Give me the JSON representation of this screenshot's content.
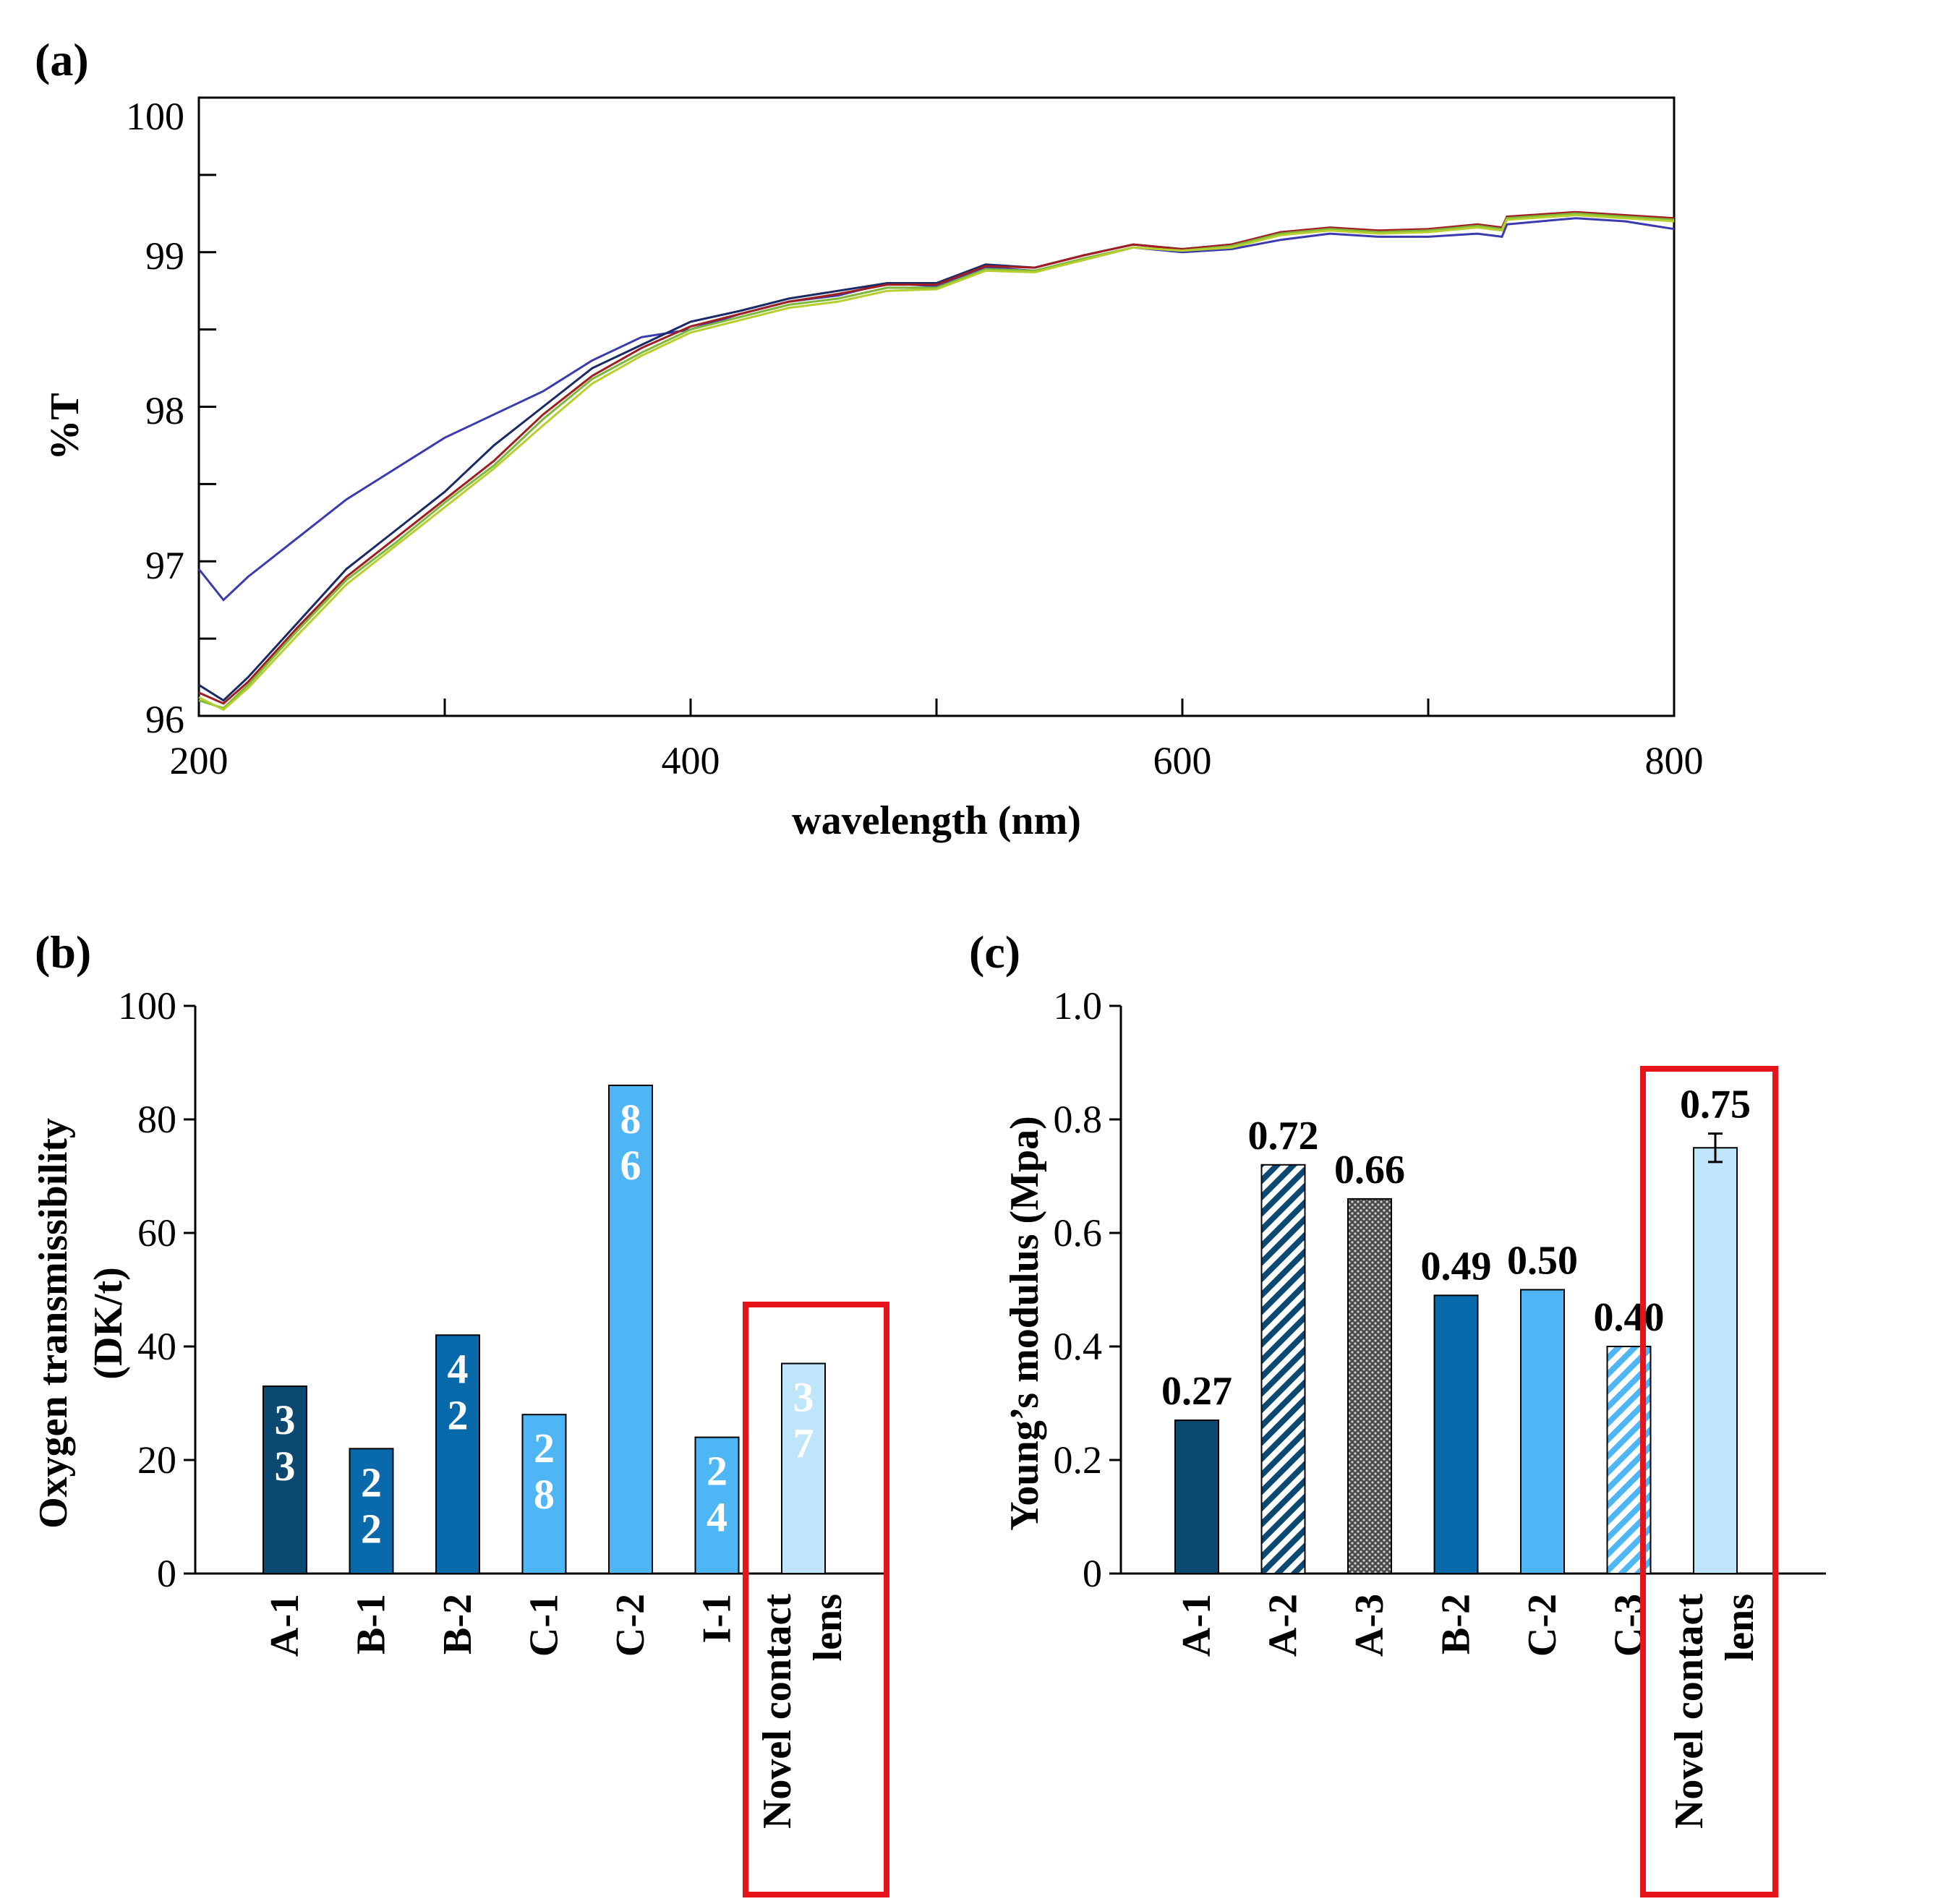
{
  "colors": {
    "navy": "#0b4872",
    "blue": "#0869ab",
    "light_blue": "#4fb6f5",
    "pale_blue": "#bfe5fb",
    "highlight_red": "#e8141b",
    "line_blue": "#3b3bb0",
    "line_navy": "#1a2a66",
    "line_red": "#a01e22",
    "line_green": "#7eb83a",
    "line_lime": "#b6cf2f"
  },
  "chart_data": [
    {
      "panel": "(a)",
      "type": "line",
      "xlabel": "wavelength (nm)",
      "ylabel": "%T",
      "xlim": [
        200,
        800
      ],
      "ylim": [
        96,
        100
      ],
      "xticks": [
        "200",
        "400",
        "600",
        "800"
      ],
      "yticks": [
        "96",
        "97",
        "98",
        "99",
        "100"
      ],
      "x": [
        200,
        210,
        220,
        240,
        260,
        280,
        300,
        320,
        340,
        360,
        380,
        400,
        420,
        440,
        460,
        480,
        500,
        520,
        540,
        560,
        580,
        600,
        620,
        640,
        660,
        680,
        700,
        720,
        730,
        732,
        760,
        780,
        800
      ],
      "series": [
        {
          "color_key": "line_blue",
          "values": [
            96.95,
            96.75,
            96.9,
            97.15,
            97.4,
            97.6,
            97.8,
            97.95,
            98.1,
            98.3,
            98.45,
            98.5,
            98.6,
            98.68,
            98.72,
            98.8,
            98.78,
            98.9,
            98.88,
            98.95,
            99.03,
            99.0,
            99.02,
            99.08,
            99.12,
            99.1,
            99.1,
            99.12,
            99.1,
            99.18,
            99.22,
            99.2,
            99.15
          ]
        },
        {
          "color_key": "line_navy",
          "values": [
            96.2,
            96.1,
            96.25,
            96.6,
            96.95,
            97.2,
            97.45,
            97.75,
            98.0,
            98.25,
            98.4,
            98.55,
            98.62,
            98.7,
            98.75,
            98.8,
            98.8,
            98.92,
            98.9,
            98.98,
            99.05,
            99.02,
            99.05,
            99.12,
            99.15,
            99.13,
            99.14,
            99.17,
            99.15,
            99.22,
            99.25,
            99.23,
            99.2
          ]
        },
        {
          "color_key": "line_red",
          "values": [
            96.15,
            96.08,
            96.22,
            96.57,
            96.9,
            97.15,
            97.4,
            97.65,
            97.95,
            98.2,
            98.38,
            98.52,
            98.6,
            98.68,
            98.73,
            98.79,
            98.79,
            98.91,
            98.9,
            98.98,
            99.05,
            99.02,
            99.05,
            99.13,
            99.16,
            99.14,
            99.15,
            99.18,
            99.16,
            99.23,
            99.26,
            99.24,
            99.22
          ]
        },
        {
          "color_key": "line_green",
          "values": [
            96.1,
            96.05,
            96.2,
            96.55,
            96.88,
            97.12,
            97.38,
            97.62,
            97.92,
            98.18,
            98.35,
            98.5,
            98.58,
            98.66,
            98.7,
            98.77,
            98.77,
            98.89,
            98.88,
            98.96,
            99.03,
            99.01,
            99.04,
            99.12,
            99.15,
            99.13,
            99.14,
            99.17,
            99.15,
            99.22,
            99.25,
            99.23,
            99.21
          ]
        },
        {
          "color_key": "line_lime",
          "values": [
            96.12,
            96.04,
            96.18,
            96.52,
            96.85,
            97.1,
            97.35,
            97.6,
            97.88,
            98.15,
            98.33,
            98.48,
            98.56,
            98.64,
            98.68,
            98.75,
            98.76,
            98.88,
            98.87,
            98.95,
            99.03,
            99.01,
            99.03,
            99.11,
            99.14,
            99.12,
            99.13,
            99.16,
            99.14,
            99.21,
            99.24,
            99.22,
            99.2
          ]
        }
      ]
    },
    {
      "panel": "(b)",
      "type": "bar",
      "ylabel_line1": "Oxygen transmissibility",
      "ylabel_line2": "(DK/t)",
      "ylim": [
        0,
        100
      ],
      "yticks": [
        "0",
        "20",
        "40",
        "60",
        "80",
        "100"
      ],
      "categories": [
        "A-1",
        "B-1",
        "B-2",
        "C-1",
        "C-2",
        "I-1",
        "Novel contact lens"
      ],
      "category_lines": [
        [
          "A-1"
        ],
        [
          "B-1"
        ],
        [
          "B-2"
        ],
        [
          "C-1"
        ],
        [
          "C-2"
        ],
        [
          "I-1"
        ],
        [
          "Novel contact",
          "lens"
        ]
      ],
      "values": [
        33,
        22,
        42,
        28,
        86,
        24,
        37
      ],
      "labels": [
        [
          "3",
          "3"
        ],
        [
          "2",
          "2"
        ],
        [
          "4",
          "2"
        ],
        [
          "2",
          "8"
        ],
        [
          "8",
          "6"
        ],
        [
          "2",
          "4"
        ],
        [
          "3",
          "7"
        ]
      ],
      "bar_colors": [
        "navy",
        "blue",
        "blue",
        "light_blue",
        "light_blue",
        "light_blue",
        "pale_blue"
      ],
      "highlight_index": 6
    },
    {
      "panel": "(c)",
      "type": "bar",
      "ylabel": "Young’s modulus (Mpa)",
      "ylim": [
        0,
        1.0
      ],
      "yticks": [
        "0",
        "0.2",
        "0.4",
        "0.6",
        "0.8",
        "1.0"
      ],
      "categories": [
        "A-1",
        "A-2",
        "A-3",
        "B-2",
        "C-2",
        "C-3",
        "Novel contact lens"
      ],
      "category_lines": [
        [
          "A-1"
        ],
        [
          "A-2"
        ],
        [
          "A-3"
        ],
        [
          "B-2"
        ],
        [
          "C-2"
        ],
        [
          "C-3"
        ],
        [
          "Novel contact",
          "lens"
        ]
      ],
      "values": [
        0.27,
        0.72,
        0.66,
        0.49,
        0.5,
        0.4,
        0.75
      ],
      "labels": [
        "0.27",
        "0.72",
        "0.66",
        "0.49",
        "0.50",
        "0.40",
        "0.75"
      ],
      "bar_fills": [
        "navy",
        "hatch-navy",
        "dots",
        "blue",
        "light_blue",
        "hatch-light",
        "pale_blue"
      ],
      "error": [
        null,
        null,
        null,
        null,
        null,
        null,
        0.025
      ],
      "highlight_index": 6
    }
  ]
}
